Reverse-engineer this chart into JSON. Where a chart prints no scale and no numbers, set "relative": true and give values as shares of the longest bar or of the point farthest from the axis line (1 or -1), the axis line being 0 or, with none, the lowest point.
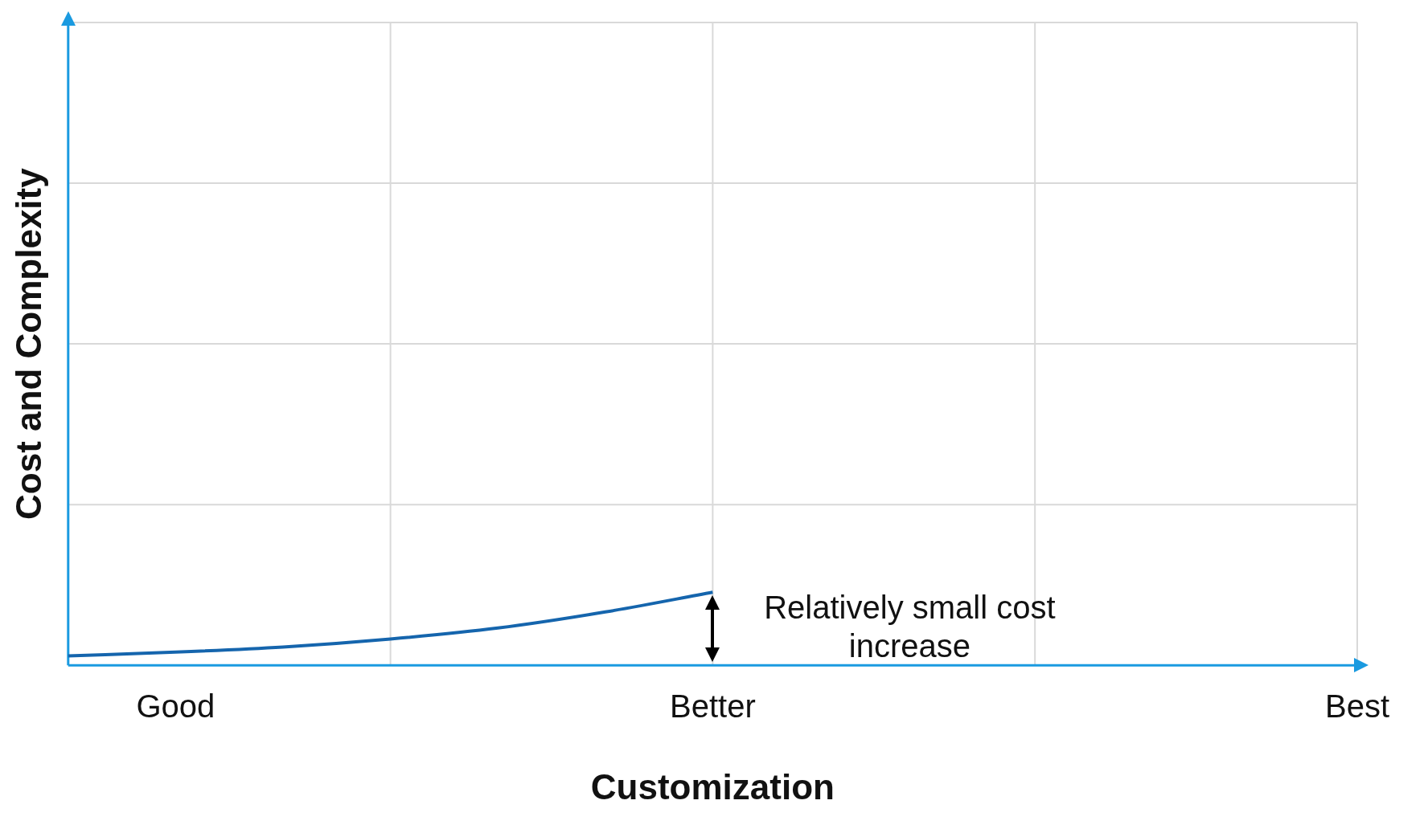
{
  "chart_data": {
    "type": "line",
    "relative": true,
    "xlabel": "Customization",
    "ylabel": "Cost and Complexity",
    "categories": [
      null,
      "Good",
      null,
      null,
      null,
      null,
      "Better",
      null,
      null,
      null,
      null,
      null,
      "Best"
    ],
    "series": [
      {
        "color": "#1565ad",
        "values": [
          0.13,
          0.18,
          0.25,
          0.36,
          0.51,
          0.73,
          1,
          null,
          null,
          null,
          null,
          null,
          null
        ]
      }
    ],
    "grid": true,
    "legend": false,
    "marker": "none",
    "line_style": "solid",
    "annotations": [
      "Relatively small cost increase"
    ]
  }
}
